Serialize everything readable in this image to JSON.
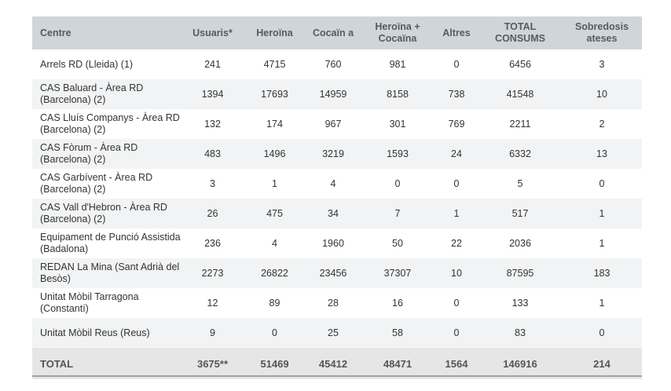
{
  "headers": [
    "Centre",
    "Usuaris*",
    "Heroïna",
    "Cocaïn a",
    "Heroïna + Cocaïna",
    "Altres",
    "TOTAL CONSUMS",
    "Sobredosis ateses"
  ],
  "rows": [
    [
      "Arrels RD (Lleida) (1)",
      "241",
      "4715",
      "760",
      "981",
      "0",
      "6456",
      "3"
    ],
    [
      "CAS Baluard - Àrea RD (Barcelona) (2)",
      "1394",
      "17693",
      "14959",
      "8158",
      "738",
      "41548",
      "10"
    ],
    [
      "CAS Lluís Companys - Àrea RD (Barcelona) (2)",
      "132",
      "174",
      "967",
      "301",
      "769",
      "2211",
      "2"
    ],
    [
      "CAS Fòrum - Àrea RD (Barcelona) (2)",
      "483",
      "1496",
      "3219",
      "1593",
      "24",
      "6332",
      "13"
    ],
    [
      "CAS Garbívent - Àrea RD (Barcelona) (2)",
      "3",
      "1",
      "4",
      "0",
      "0",
      "5",
      "0"
    ],
    [
      "CAS Vall d'Hebron - Àrea RD (Barcelona) (2)",
      "26",
      "475",
      "34",
      "7",
      "1",
      "517",
      "1"
    ],
    [
      "Equipament de Punció Assistida (Badalona)",
      "236",
      "4",
      "1960",
      "50",
      "22",
      "2036",
      "1"
    ],
    [
      "REDAN La Mina (Sant Adrià del Besòs)",
      "2273",
      "26822",
      "23456",
      "37307",
      "10",
      "87595",
      "183"
    ],
    [
      "Unitat Mòbil Tarragona (Constantí)",
      "12",
      "89",
      "28",
      "16",
      "0",
      "133",
      "1"
    ],
    [
      "Unitat Mòbil Reus (Reus)",
      "9",
      "0",
      "25",
      "58",
      "0",
      "83",
      "0"
    ]
  ],
  "total": [
    "TOTAL",
    "3675**",
    "51469",
    "45412",
    "48471",
    "1564",
    "146916",
    "214"
  ],
  "colors": {
    "header_bg": "#ced6db",
    "alt_row_bg": "#f2f3f4",
    "total_bg": "#e6e6e6"
  }
}
